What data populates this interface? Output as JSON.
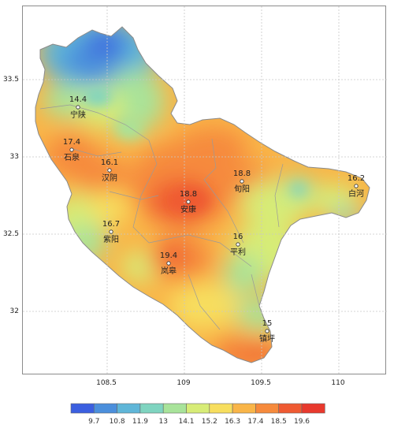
{
  "axes": {
    "x_ticks": [
      "108.5",
      "109",
      "109.5",
      "110"
    ],
    "y_ticks": [
      "33.5",
      "33",
      "32.5",
      "32"
    ]
  },
  "stations": [
    {
      "name": "宁陕",
      "value": "14.4"
    },
    {
      "name": "石泉",
      "value": "17.4"
    },
    {
      "name": "汉阴",
      "value": "16.1"
    },
    {
      "name": "安康",
      "value": "18.8"
    },
    {
      "name": "旬阳",
      "value": "18.8"
    },
    {
      "name": "白河",
      "value": "16.2"
    },
    {
      "name": "紫阳",
      "value": "16.7"
    },
    {
      "name": "岚皋",
      "value": "19.4"
    },
    {
      "name": "平利",
      "value": "16"
    },
    {
      "name": "镇坪",
      "value": "15"
    }
  ],
  "legend": {
    "labels": [
      "9.7",
      "10.8",
      "11.9",
      "13",
      "14.1",
      "15.2",
      "16.3",
      "17.4",
      "18.5",
      "19.6"
    ],
    "colors": [
      "#3b5fe0",
      "#4b8fdc",
      "#5fb6d8",
      "#7fd4c0",
      "#a8e39a",
      "#d7ec77",
      "#f7de5e",
      "#f9b548",
      "#f68a3c",
      "#ef5a32",
      "#e8392d"
    ]
  }
}
